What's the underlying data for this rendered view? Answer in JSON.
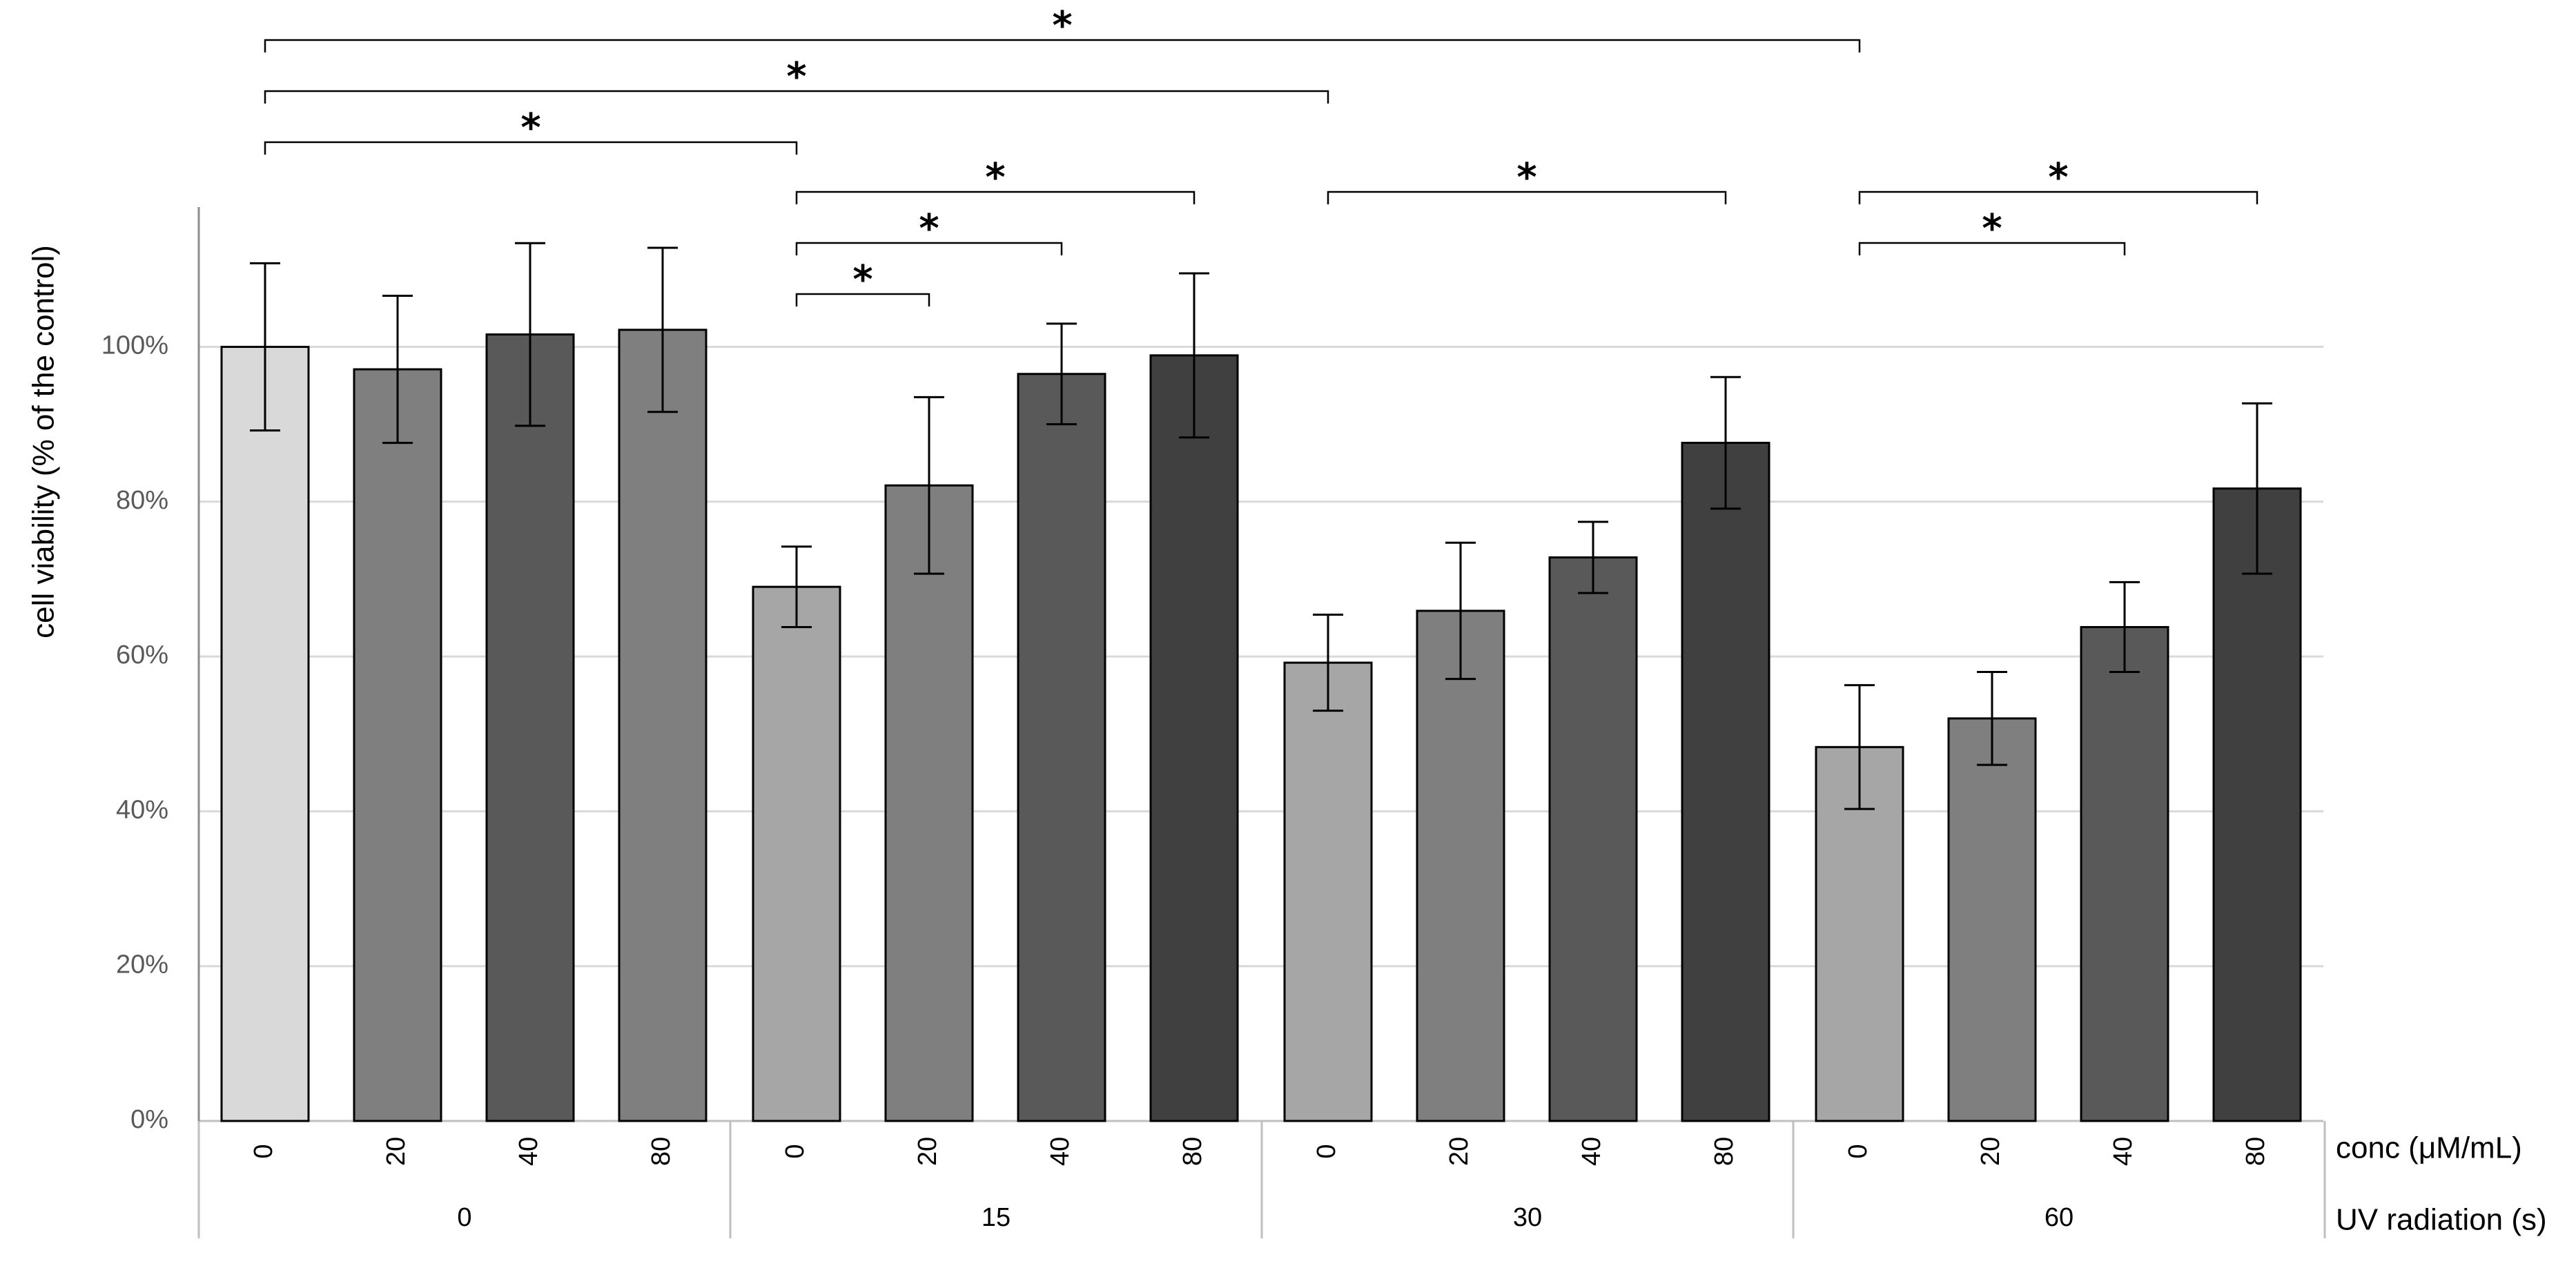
{
  "chart_data": {
    "type": "bar",
    "ylabel": "cell viability (% of the control)",
    "ylim": [
      0,
      120
    ],
    "y_ticks": [
      "0%",
      "20%",
      "40%",
      "60%",
      "80%",
      "100%"
    ],
    "y_tick_values": [
      0,
      20,
      40,
      60,
      80,
      100
    ],
    "grid": true,
    "x_level1_title": "conc (μM/mL)",
    "x_level2_title": "UV radiation (s)",
    "groups": [
      {
        "label": "0",
        "bars": [
          {
            "conc": "0",
            "value": 100,
            "error": 10.8,
            "color": "#d9d9d9"
          },
          {
            "conc": "20",
            "value": 97.1,
            "error": 9.5,
            "color": "#7f7f7f"
          },
          {
            "conc": "40",
            "value": 101.6,
            "error": 11.8,
            "color": "#595959"
          },
          {
            "conc": "80",
            "value": 102.2,
            "error": 10.6,
            "color": "#7f7f7f"
          }
        ]
      },
      {
        "label": "15",
        "bars": [
          {
            "conc": "0",
            "value": 69.0,
            "error": 5.2,
            "color": "#a6a6a6"
          },
          {
            "conc": "20",
            "value": 82.1,
            "error": 11.4,
            "color": "#7f7f7f"
          },
          {
            "conc": "40",
            "value": 96.5,
            "error": 6.5,
            "color": "#595959"
          },
          {
            "conc": "80",
            "value": 98.9,
            "error": 10.6,
            "color": "#404040"
          }
        ]
      },
      {
        "label": "30",
        "bars": [
          {
            "conc": "0",
            "value": 59.2,
            "error": 6.2,
            "color": "#a6a6a6"
          },
          {
            "conc": "20",
            "value": 65.9,
            "error": 8.8,
            "color": "#7f7f7f"
          },
          {
            "conc": "40",
            "value": 72.8,
            "error": 4.6,
            "color": "#595959"
          },
          {
            "conc": "80",
            "value": 87.6,
            "error": 8.5,
            "color": "#404040"
          }
        ]
      },
      {
        "label": "60",
        "bars": [
          {
            "conc": "0",
            "value": 48.3,
            "error": 8.0,
            "color": "#a6a6a6"
          },
          {
            "conc": "20",
            "value": 52.0,
            "error": 6.0,
            "color": "#7f7f7f"
          },
          {
            "conc": "40",
            "value": 63.8,
            "error": 5.8,
            "color": "#595959"
          },
          {
            "conc": "80",
            "value": 81.7,
            "error": 11.0,
            "color": "#404040"
          }
        ]
      }
    ],
    "significance": [
      {
        "from": [
          0,
          0
        ],
        "to": [
          3,
          0
        ],
        "label": "*"
      },
      {
        "from": [
          0,
          0
        ],
        "to": [
          2,
          0
        ],
        "label": "*"
      },
      {
        "from": [
          0,
          0
        ],
        "to": [
          1,
          0
        ],
        "label": "*"
      },
      {
        "from": [
          1,
          0
        ],
        "to": [
          1,
          3
        ],
        "label": "*"
      },
      {
        "from": [
          1,
          0
        ],
        "to": [
          1,
          2
        ],
        "label": "*"
      },
      {
        "from": [
          1,
          0
        ],
        "to": [
          1,
          1
        ],
        "label": "*"
      },
      {
        "from": [
          2,
          0
        ],
        "to": [
          2,
          3
        ],
        "label": "*"
      },
      {
        "from": [
          3,
          0
        ],
        "to": [
          3,
          3
        ],
        "label": "*"
      },
      {
        "from": [
          3,
          0
        ],
        "to": [
          3,
          2
        ],
        "label": "*"
      }
    ]
  }
}
